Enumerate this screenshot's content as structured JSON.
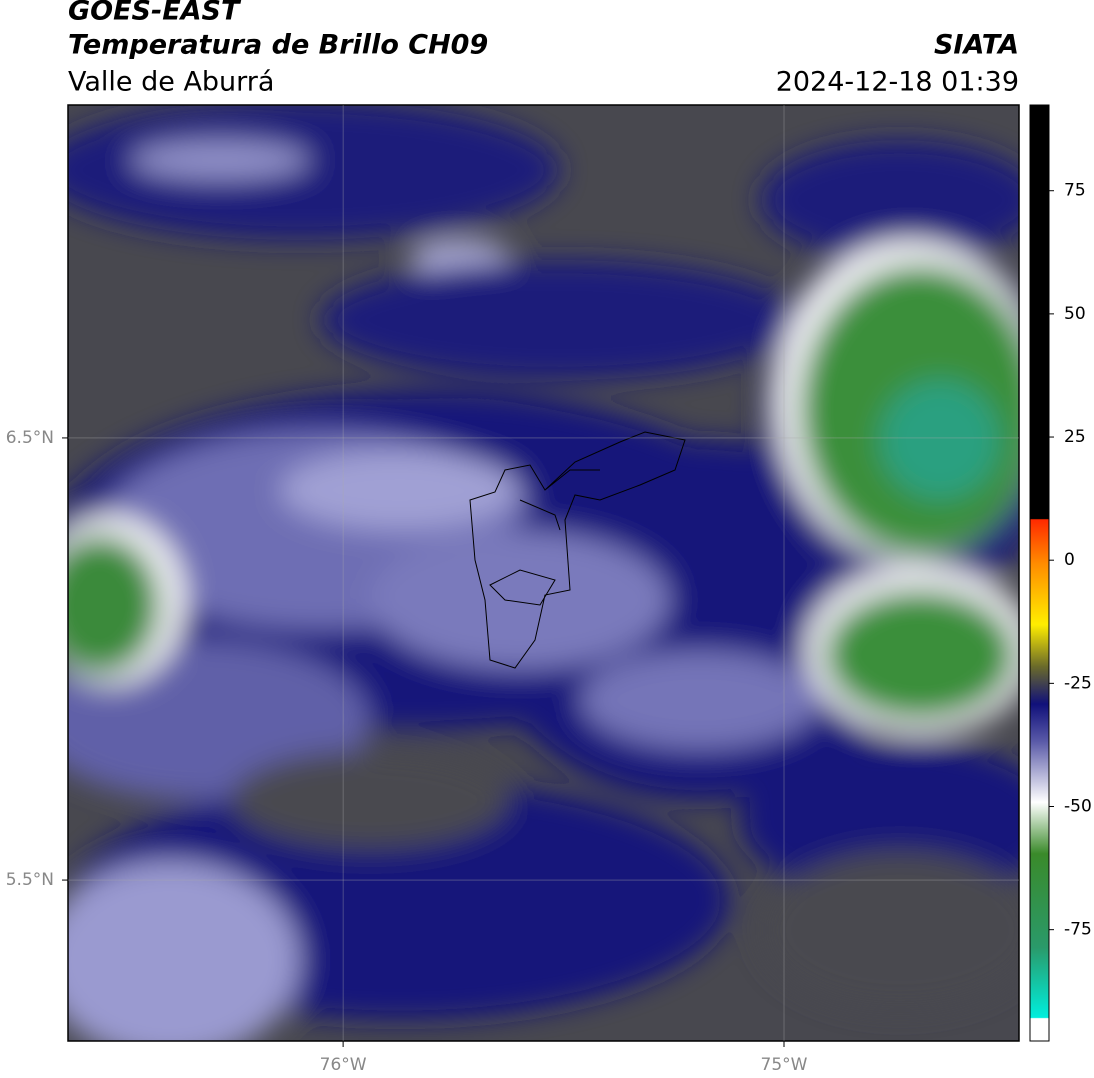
{
  "header": {
    "title": "GOES-EAST",
    "subtitle": "Temperatura de Brillo CH09",
    "region": "Valle de Aburrá",
    "source": "SIATA",
    "datetime": "2024-12-18 01:39"
  },
  "map": {
    "xlim": [
      -76.624,
      -74.467
    ],
    "ylim": [
      5.136,
      7.253
    ],
    "xticks": [
      {
        "value": -76,
        "label": "76°W"
      },
      {
        "value": -75,
        "label": "75°W"
      }
    ],
    "yticks": [
      {
        "value": 6.5,
        "label": "6.5°N"
      },
      {
        "value": 5.5,
        "label": "5.5°N"
      }
    ],
    "grid": true
  },
  "colorbar": {
    "clim": [
      -97.6,
      92.4
    ],
    "ticks": [
      -75,
      -50,
      -25,
      0,
      25,
      50,
      75
    ]
  }
}
